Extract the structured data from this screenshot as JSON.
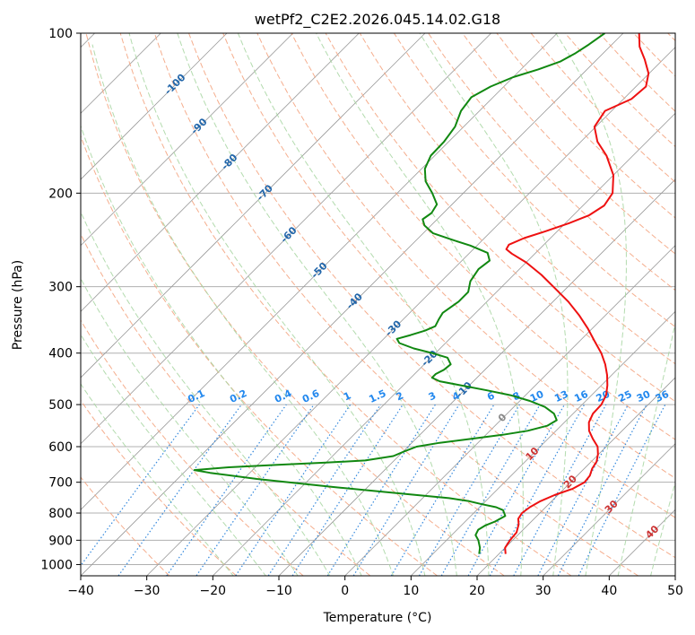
{
  "chart_data": {
    "type": "skew-t",
    "title": "wetPf2_C2E2.2026.045.14.02.G18",
    "xlabel": "Temperature (°C)",
    "ylabel": "Pressure (hPa)",
    "xlim": [
      -40,
      50
    ],
    "ylim": [
      1050,
      100
    ],
    "log_pressure_axis": true,
    "x_ticks": [
      -40,
      -30,
      -20,
      -10,
      0,
      10,
      20,
      30,
      40,
      50
    ],
    "x_tick_labels": [
      "−40",
      "−30",
      "−20",
      "−10",
      "0",
      "10",
      "20",
      "30",
      "40",
      "50"
    ],
    "y_ticks": [
      1000,
      900,
      800,
      700,
      600,
      500,
      400,
      300,
      200,
      100
    ],
    "y_tick_labels": [
      "1000",
      "900",
      "800",
      "700",
      "600",
      "500",
      "400",
      "300",
      "200",
      "100"
    ],
    "grid": true,
    "colors": {
      "temperature": "#ee1111",
      "dewpoint": "#118811",
      "isotherm": "#999999",
      "dry_adiabat": "#f4a582",
      "moist_adiabat": "#a6d5a0",
      "mixing_ratio": "#3388dd",
      "isotherm_label": "#2266aa",
      "dry_adiabat_label": "#cc3333",
      "mixing_ratio_label": "#2288ee"
    },
    "series": [
      {
        "key": "temperature",
        "points": [
          [
            21,
            955
          ],
          [
            20,
            930
          ],
          [
            19.6,
            900
          ],
          [
            19.4,
            870
          ],
          [
            18.5,
            840
          ],
          [
            17.6,
            820
          ],
          [
            17.3,
            800
          ],
          [
            17.6,
            780
          ],
          [
            18.3,
            760
          ],
          [
            19.5,
            740
          ],
          [
            21.3,
            720
          ],
          [
            22.1,
            700
          ],
          [
            21.9,
            680
          ],
          [
            21.2,
            660
          ],
          [
            20.8,
            640
          ],
          [
            19.9,
            620
          ],
          [
            18.7,
            600
          ],
          [
            16.8,
            580
          ],
          [
            15,
            560
          ],
          [
            13.7,
            540
          ],
          [
            13,
            520
          ],
          [
            12.9,
            500
          ],
          [
            12.2,
            480
          ],
          [
            10.9,
            460
          ],
          [
            9.3,
            440
          ],
          [
            7.4,
            420
          ],
          [
            5.1,
            400
          ],
          [
            2.3,
            380
          ],
          [
            -0.6,
            360
          ],
          [
            -3.9,
            340
          ],
          [
            -7.7,
            320
          ],
          [
            -12.2,
            300
          ],
          [
            -15.8,
            285
          ],
          [
            -20,
            270
          ],
          [
            -23.5,
            260
          ],
          [
            -25,
            255
          ],
          [
            -25.3,
            250
          ],
          [
            -24,
            243
          ],
          [
            -21.8,
            236
          ],
          [
            -19.5,
            228
          ],
          [
            -17.6,
            220
          ],
          [
            -16.8,
            211
          ],
          [
            -17.4,
            200
          ],
          [
            -20,
            185
          ],
          [
            -24,
            170
          ],
          [
            -27.5,
            160
          ],
          [
            -30.2,
            150
          ],
          [
            -31,
            140
          ],
          [
            -28.8,
            133
          ],
          [
            -28.5,
            126
          ],
          [
            -30.1,
            119
          ],
          [
            -32.8,
            112
          ],
          [
            -35.5,
            106
          ],
          [
            -37.6,
            100
          ]
        ]
      },
      {
        "key": "dewpoint",
        "points": [
          [
            17,
            955
          ],
          [
            16.2,
            930
          ],
          [
            14.8,
            900
          ],
          [
            13.6,
            880
          ],
          [
            13.2,
            860
          ],
          [
            13.6,
            845
          ],
          [
            14.5,
            830
          ],
          [
            15.2,
            810
          ],
          [
            14,
            790
          ],
          [
            12.5,
            780
          ],
          [
            9.9,
            770
          ],
          [
            7.5,
            760
          ],
          [
            4,
            750
          ],
          [
            -4,
            735
          ],
          [
            -15,
            715
          ],
          [
            -28,
            690
          ],
          [
            -36,
            672
          ],
          [
            -38.8,
            664
          ],
          [
            -34,
            656
          ],
          [
            -27,
            649
          ],
          [
            -20,
            643
          ],
          [
            -14.4,
            637
          ],
          [
            -10.8,
            625
          ],
          [
            -9.8,
            612
          ],
          [
            -8.7,
            600
          ],
          [
            -5.8,
            590
          ],
          [
            -1.6,
            580
          ],
          [
            2.5,
            570
          ],
          [
            5.7,
            560
          ],
          [
            7.9,
            548
          ],
          [
            8.5,
            535
          ],
          [
            7.1,
            520
          ],
          [
            4.7,
            505
          ],
          [
            1.5,
            492
          ],
          [
            -2.3,
            480
          ],
          [
            -6.6,
            470
          ],
          [
            -11.3,
            460
          ],
          [
            -15.1,
            452
          ],
          [
            -16.8,
            445
          ],
          [
            -16.8,
            438
          ],
          [
            -16.2,
            430
          ],
          [
            -16,
            420
          ],
          [
            -17.5,
            408
          ],
          [
            -20.5,
            400
          ],
          [
            -24,
            392
          ],
          [
            -27,
            383
          ],
          [
            -28,
            376
          ],
          [
            -26.5,
            370
          ],
          [
            -25,
            363
          ],
          [
            -24.1,
            356
          ],
          [
            -24.6,
            346
          ],
          [
            -25,
            336
          ],
          [
            -24.3,
            320
          ],
          [
            -24.3,
            307
          ],
          [
            -25.6,
            293
          ],
          [
            -26.2,
            278
          ],
          [
            -25.8,
            268
          ],
          [
            -27.3,
            259
          ],
          [
            -31,
            251
          ],
          [
            -34.5,
            245
          ],
          [
            -38.5,
            238
          ],
          [
            -41,
            230
          ],
          [
            -42.2,
            224
          ],
          [
            -41.8,
            218
          ],
          [
            -42.3,
            210
          ],
          [
            -44.7,
            200
          ],
          [
            -47.5,
            190
          ],
          [
            -49.5,
            180
          ],
          [
            -50.6,
            170
          ],
          [
            -50.7,
            160
          ],
          [
            -51.3,
            150
          ],
          [
            -52.8,
            140
          ],
          [
            -53.3,
            132
          ],
          [
            -52,
            126
          ],
          [
            -50,
            121
          ],
          [
            -47.4,
            117
          ],
          [
            -45.2,
            113
          ],
          [
            -44.2,
            109
          ],
          [
            -43.5,
            105
          ],
          [
            -42.8,
            100
          ]
        ]
      }
    ],
    "isotherm_labels": [
      "-100",
      "-90",
      "-80",
      "-70",
      "-60",
      "-50",
      "-40",
      "-30",
      "-20",
      "-10",
      "0",
      "10",
      "20",
      "30",
      "40"
    ],
    "mixing_ratio_labels": [
      "0.1",
      "0.2",
      "0.4",
      "0.6",
      "1",
      "1.5",
      "2",
      "3",
      "4",
      "6",
      "8",
      "10",
      "13",
      "16",
      "20",
      "25",
      "30",
      "36"
    ],
    "mixing_ratio_values": [
      0.1,
      0.2,
      0.4,
      0.6,
      1,
      1.5,
      2,
      3,
      4,
      6,
      8,
      10,
      13,
      16,
      20,
      25,
      30,
      36
    ]
  }
}
